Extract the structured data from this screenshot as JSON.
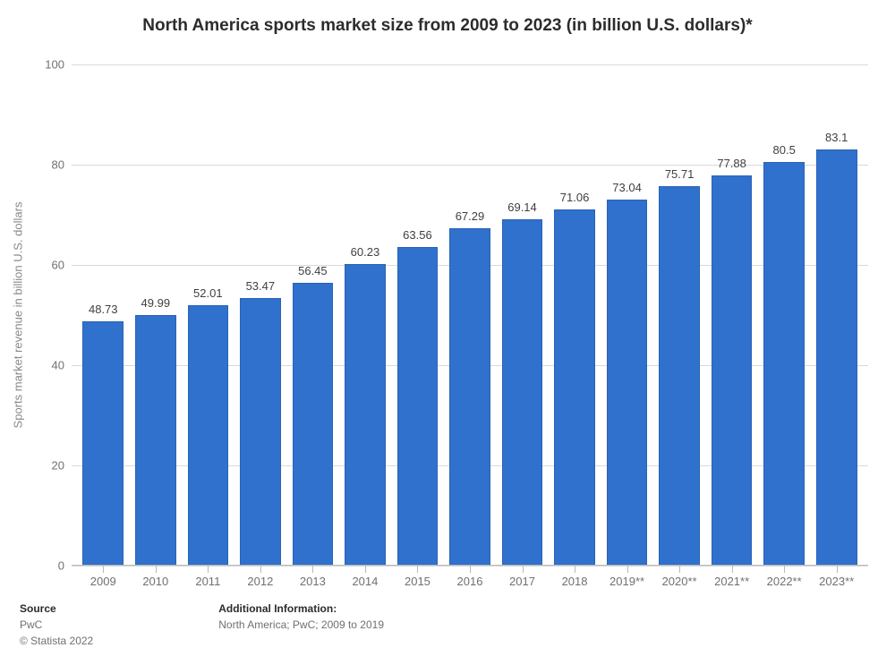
{
  "title": "North America sports market size from 2009 to 2023 (in billion U.S. dollars)*",
  "title_fontsize": 19,
  "chart": {
    "type": "bar",
    "categories": [
      "2009",
      "2010",
      "2011",
      "2012",
      "2013",
      "2014",
      "2015",
      "2016",
      "2017",
      "2018",
      "2019**",
      "2020**",
      "2021**",
      "2022**",
      "2023**"
    ],
    "values": [
      48.73,
      49.99,
      52.01,
      53.47,
      56.45,
      60.23,
      63.56,
      67.29,
      69.14,
      71.06,
      73.04,
      75.71,
      77.88,
      80.5,
      83.1
    ],
    "bar_color": "#2f71cd",
    "bar_border_color": "#2a63b5",
    "background_color": "#ffffff",
    "grid_color": "#d9d9d9",
    "axis_line_color": "#b9b9b9",
    "tick_mark_color": "#b9b9b9",
    "ylim": [
      0,
      100
    ],
    "ytick_step": 20,
    "yticks": [
      0,
      20,
      40,
      60,
      80,
      100
    ],
    "ylabel": "Sports market revenue in billion U.S. dollars",
    "label_fontsize": 13,
    "value_label_fontsize": 13,
    "tick_label_color": "#707070",
    "bar_width": 0.78
  },
  "footer": {
    "source_heading": "Source",
    "source_text": "PwC",
    "copyright": "© Statista 2022",
    "addl_heading": "Additional Information:",
    "addl_text": "North America; PwC; 2009 to 2019"
  }
}
